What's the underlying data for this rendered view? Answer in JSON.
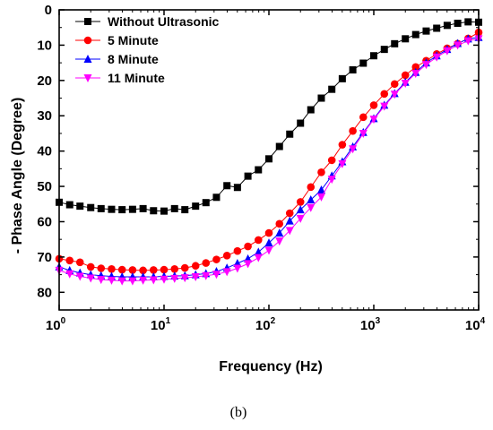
{
  "chart_data": {
    "type": "scatter",
    "title": "",
    "xlabel": "Frequency (Hz)",
    "ylabel": "- Phase Angle (Degree)",
    "x_scale": "log",
    "xlim": [
      1,
      10000
    ],
    "ylim": [
      0,
      85
    ],
    "y_inverted": true,
    "x_ticks": [
      {
        "value": 1,
        "base": "10",
        "exp": "0"
      },
      {
        "value": 10,
        "base": "10",
        "exp": "1"
      },
      {
        "value": 100,
        "base": "10",
        "exp": "2"
      },
      {
        "value": 1000,
        "base": "10",
        "exp": "3"
      },
      {
        "value": 10000,
        "base": "10",
        "exp": "4"
      }
    ],
    "y_ticks": [
      0,
      10,
      20,
      30,
      40,
      50,
      60,
      70,
      80
    ],
    "legend_position": "top-left",
    "caption": "(b)",
    "x": [
      1.0,
      1.26,
      1.58,
      2.0,
      2.51,
      3.16,
      3.98,
      5.01,
      6.31,
      7.94,
      10.0,
      12.6,
      15.8,
      20.0,
      25.1,
      31.6,
      39.8,
      50.1,
      63.1,
      79.4,
      100,
      126,
      158,
      200,
      251,
      316,
      398,
      501,
      631,
      794,
      1000,
      1260,
      1580,
      2000,
      2510,
      3160,
      3980,
      5010,
      6310,
      7940,
      10000
    ],
    "series": [
      {
        "name": "Without Ultrasonic",
        "marker": "square",
        "color": "#000000",
        "values": [
          54.5,
          55.2,
          55.6,
          56.0,
          56.3,
          56.5,
          56.6,
          56.5,
          56.3,
          56.9,
          57.0,
          56.3,
          56.6,
          55.6,
          54.6,
          53.1,
          49.8,
          50.3,
          47.1,
          45.3,
          42.2,
          38.7,
          35.2,
          32.1,
          28.3,
          25.0,
          22.5,
          19.5,
          17.0,
          15.1,
          13.0,
          11.2,
          9.6,
          8.2,
          7.0,
          6.0,
          5.2,
          4.4,
          3.8,
          3.4,
          3.5
        ]
      },
      {
        "name": "5 Minute",
        "marker": "circle",
        "color": "#ff0000",
        "values": [
          70.5,
          71.0,
          71.5,
          72.8,
          73.2,
          73.4,
          73.6,
          73.7,
          73.8,
          73.7,
          73.6,
          73.4,
          73.1,
          72.5,
          71.7,
          70.7,
          69.6,
          68.3,
          67.0,
          65.2,
          63.2,
          60.6,
          57.6,
          54.4,
          50.2,
          46.0,
          42.6,
          38.2,
          34.3,
          30.4,
          27.0,
          23.8,
          21.0,
          18.5,
          16.2,
          14.4,
          12.5,
          10.9,
          9.6,
          8.1,
          6.4
        ]
      },
      {
        "name": "8 Minute",
        "marker": "triangle-up",
        "color": "#0000ff",
        "values": [
          72.8,
          73.8,
          74.5,
          75.0,
          75.3,
          75.5,
          75.6,
          75.6,
          75.6,
          75.6,
          75.5,
          75.4,
          75.3,
          75.0,
          74.7,
          74.1,
          73.1,
          71.8,
          70.5,
          68.6,
          66.0,
          63.2,
          59.8,
          56.6,
          53.8,
          51.0,
          47.0,
          43.0,
          38.8,
          34.7,
          30.8,
          27.0,
          23.7,
          20.5,
          17.7,
          15.0,
          13.0,
          11.2,
          9.5,
          8.2,
          7.8
        ]
      },
      {
        "name": "11 Minute",
        "marker": "triangle-down",
        "color": "#ff00ff",
        "values": [
          73.8,
          74.8,
          75.5,
          76.0,
          76.4,
          76.6,
          76.8,
          76.8,
          76.6,
          76.5,
          76.3,
          76.1,
          75.9,
          75.6,
          75.3,
          74.9,
          74.2,
          73.2,
          71.9,
          70.2,
          68.1,
          65.5,
          62.5,
          59.1,
          56.0,
          53.0,
          48.0,
          43.6,
          39.4,
          35.0,
          31.0,
          27.3,
          23.9,
          20.8,
          18.0,
          15.5,
          13.4,
          11.6,
          10.0,
          8.8,
          8.2
        ]
      }
    ]
  }
}
